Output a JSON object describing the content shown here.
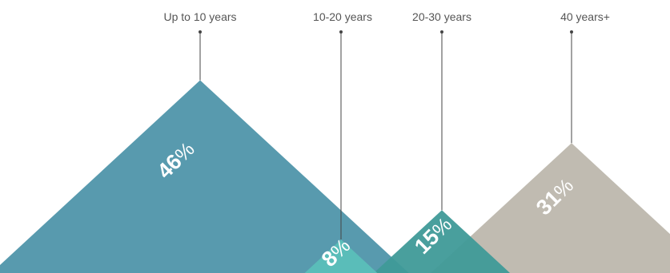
{
  "chart_data": {
    "type": "area",
    "title": "",
    "unit": "%",
    "categories": [
      "Up to 10 years",
      "10-20 years",
      "20-30 years",
      "40 years+"
    ],
    "values": [
      46,
      8,
      15,
      31
    ],
    "colors": [
      "#4f95aa",
      "#5bbfb9",
      "#3f9a98",
      "#bdb7ad"
    ],
    "label_color": "#555555",
    "value_label_color": "#ffffff"
  }
}
